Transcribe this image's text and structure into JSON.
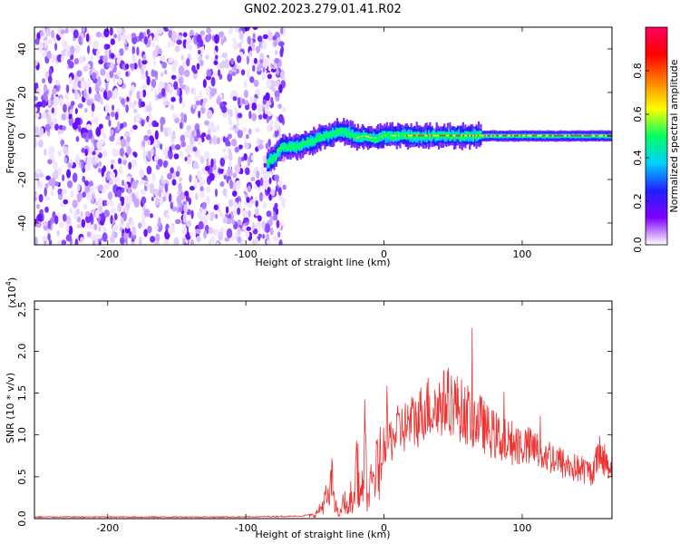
{
  "title": "GN02.2023.279.01.41.R02",
  "chart_data": [
    {
      "type": "heatmap",
      "xlabel": "Height of straight line (km)",
      "ylabel": "Frequency (Hz)",
      "xlim": [
        -253,
        165
      ],
      "ylim": [
        -50,
        50
      ],
      "x_ticks": [
        -200,
        -100,
        0,
        100
      ],
      "y_ticks": [
        -40,
        -20,
        0,
        20,
        40
      ],
      "grid": false,
      "noise_region_x": [
        -253,
        -78
      ],
      "signal_track": {
        "x": [
          -85,
          -80,
          -75,
          -70,
          -65,
          -60,
          -55,
          -50,
          -45,
          -40,
          -35,
          -30,
          -25,
          -20,
          -15,
          -10,
          -5,
          0,
          10,
          20,
          30,
          40,
          50,
          60,
          70,
          80,
          100,
          120,
          140,
          165
        ],
        "freq_hz": [
          -12,
          -10,
          -5,
          -5,
          -5,
          -4,
          -3,
          -2,
          0,
          0,
          2,
          2,
          1,
          -1,
          0,
          -1,
          -1,
          0,
          0,
          0,
          0,
          0,
          0,
          0,
          0,
          0,
          0,
          0,
          0,
          0
        ]
      },
      "colorbar": {
        "label": "Normalized spectral amplitude",
        "range": [
          0,
          1
        ],
        "ticks": [
          "0.0",
          "0.2",
          "0.4",
          "0.6",
          "0.8"
        ],
        "colors": [
          "#ffffff",
          "#8000ff",
          "#2020ff",
          "#00d0ff",
          "#00ff60",
          "#ffff00",
          "#ff8000",
          "#ff0000",
          "#ff0060"
        ]
      }
    },
    {
      "type": "line",
      "xlabel": "Height of straight line (km)",
      "ylabel": "SNR (10 * v/v)",
      "y_multiplier": "(x10",
      "y_multiplier_exp": "4",
      "y_multiplier_close": ")",
      "xlim": [
        -253,
        165
      ],
      "ylim": [
        0,
        2.6
      ],
      "x_ticks": [
        -200,
        -100,
        0,
        100
      ],
      "y_ticks": [
        "0.0",
        "0.5",
        "1.0",
        "1.5",
        "2.0",
        "2.5"
      ],
      "grid": false,
      "series": [
        {
          "color": "#ee3333",
          "x": [
            -253,
            -200,
            -150,
            -100,
            -60,
            -50,
            -45,
            -42,
            -40,
            -38,
            -36,
            -34,
            -32,
            -30,
            -28,
            -26,
            -24,
            -22,
            -20,
            -18,
            -16,
            -14,
            -12,
            -10,
            -8,
            -6,
            -4,
            -2,
            0,
            5,
            10,
            15,
            20,
            25,
            30,
            35,
            40,
            45,
            50,
            55,
            60,
            65,
            70,
            75,
            80,
            85,
            90,
            95,
            100,
            105,
            110,
            115,
            120,
            125,
            130,
            135,
            140,
            145,
            150,
            155,
            160,
            165
          ],
          "y": [
            0.02,
            0.02,
            0.02,
            0.02,
            0.03,
            0.06,
            0.2,
            0.35,
            0.3,
            0.65,
            0.4,
            0.12,
            0.05,
            0.25,
            0.3,
            0.1,
            0.4,
            0.2,
            1.1,
            0.5,
            0.35,
            1.25,
            0.3,
            0.5,
            0.65,
            0.75,
            0.95,
            0.9,
            0.95,
            0.95,
            1.05,
            1.1,
            1.15,
            1.2,
            1.35,
            1.3,
            1.35,
            1.4,
            1.4,
            1.3,
            1.25,
            1.2,
            1.15,
            1.05,
            1.0,
            0.95,
            0.92,
            0.9,
            0.88,
            0.85,
            0.82,
            0.78,
            0.75,
            0.7,
            0.65,
            0.62,
            0.6,
            0.58,
            0.55,
            0.72,
            0.7,
            0.62
          ]
        }
      ]
    }
  ]
}
